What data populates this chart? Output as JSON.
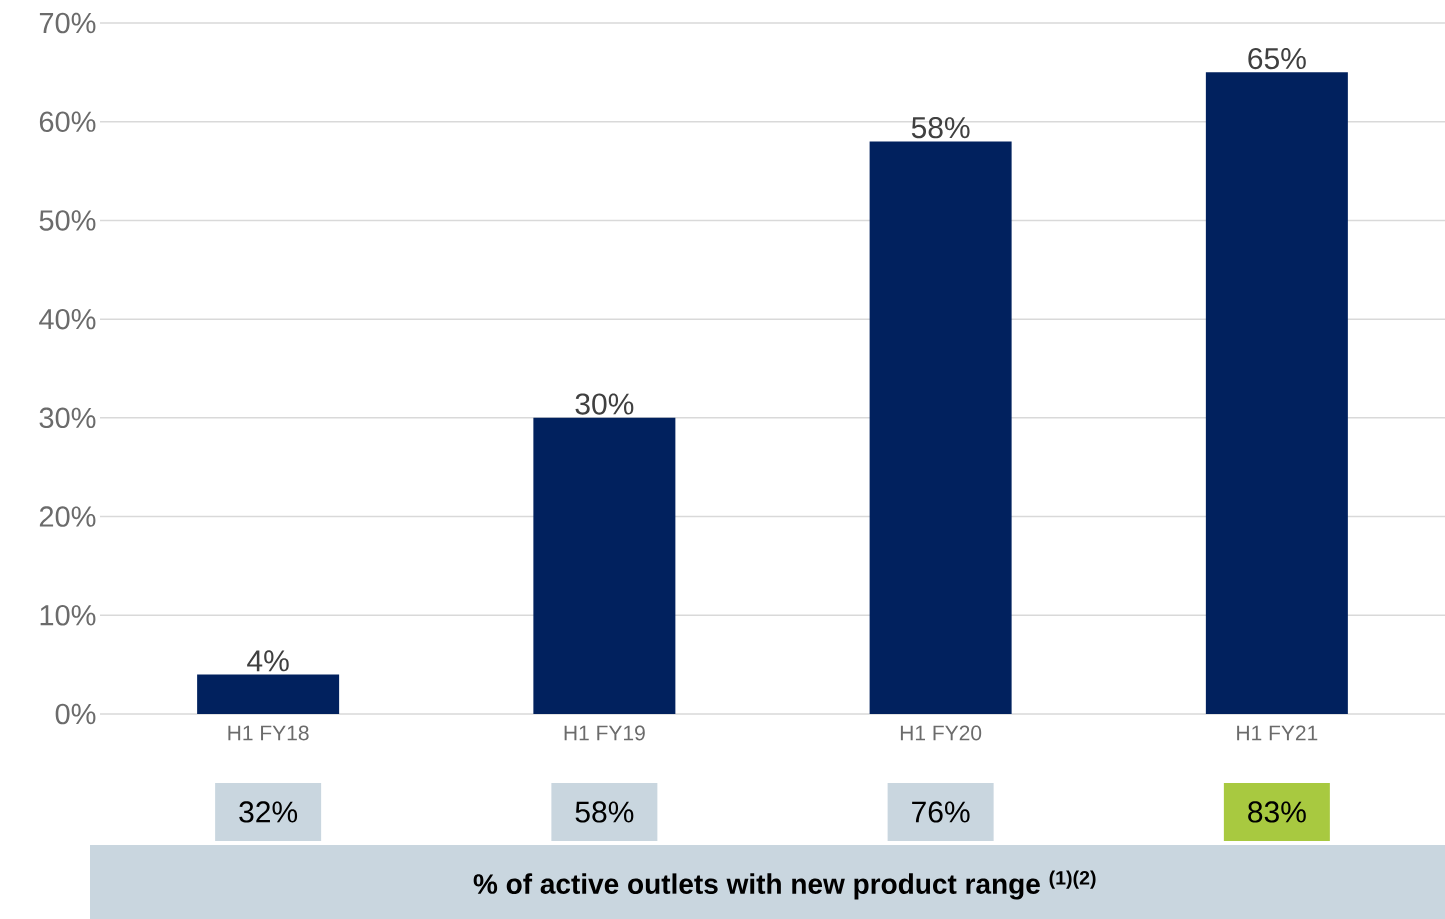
{
  "chart_data": [
    {
      "type": "bar",
      "categories": [
        "H1 FY18",
        "H1 FY19",
        "H1 FY20",
        "H1 FY21"
      ],
      "values": [
        4,
        30,
        58,
        65
      ],
      "value_labels": [
        "4%",
        "30%",
        "58%",
        "65%"
      ],
      "color": "#01215e",
      "ylim": [
        0,
        70
      ],
      "yticks": [
        {
          "value": 0,
          "label": "0%"
        },
        {
          "value": 10,
          "label": "10%"
        },
        {
          "value": 20,
          "label": "20%"
        },
        {
          "value": 30,
          "label": "30%"
        },
        {
          "value": 40,
          "label": "40%"
        },
        {
          "value": 50,
          "label": "50%"
        },
        {
          "value": 60,
          "label": "60%"
        },
        {
          "value": 70,
          "label": "70%"
        }
      ],
      "grid": "y"
    },
    {
      "type": "other",
      "categories": [
        null,
        null,
        null,
        null
      ],
      "values": [
        32,
        58,
        76,
        83
      ],
      "value_labels": [
        "32%",
        "58%",
        "76%",
        "83%"
      ],
      "colors": [
        "#c9d6df",
        "#c9d6df",
        "#c9d6df",
        "#a8c940"
      ],
      "xlabel": "% of active outlets with new product range $^{(1)(2)}$"
    }
  ]
}
